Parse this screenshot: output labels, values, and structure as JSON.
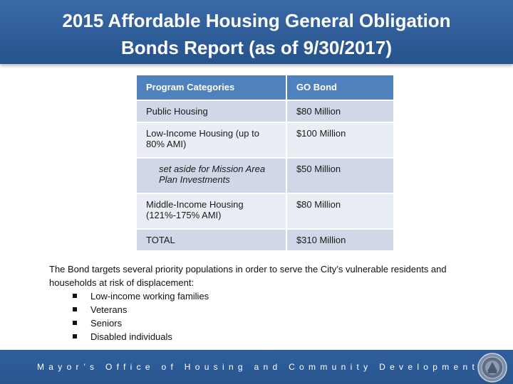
{
  "header": {
    "title_line1": "2015 Affordable Housing General Obligation",
    "title_line2": "Bonds Report (as of 9/30/2017)"
  },
  "table": {
    "headers": [
      "Program Categories",
      "GO Bond"
    ],
    "rows": [
      {
        "category": "Public Housing",
        "amount": "$80 Million"
      },
      {
        "category": "Low-Income Housing (up to 80% AMI)",
        "amount": "$100 Million"
      },
      {
        "category": "set aside for Mission Area Plan Investments",
        "amount": "$50 Million"
      },
      {
        "category": "Middle-Income Housing (121%-175% AMI)",
        "amount": "$80 Million"
      },
      {
        "category": "TOTAL",
        "amount": "$310 Million"
      }
    ]
  },
  "body": {
    "paragraph": "The Bond targets several priority populations in order to serve the City’s vulnerable residents and households at risk of displacement:",
    "populations": [
      "Low-income working families",
      "Veterans",
      "Seniors",
      "Disabled individuals"
    ]
  },
  "footer": {
    "text": "Mayor’s Office of Housing and Community Development",
    "seal_icon": "city-seal-icon"
  },
  "colors": {
    "header_blue": "#2d5b96",
    "table_header": "#4f81bd",
    "row_dark": "#d0d8e8",
    "row_light": "#e9edf4"
  }
}
